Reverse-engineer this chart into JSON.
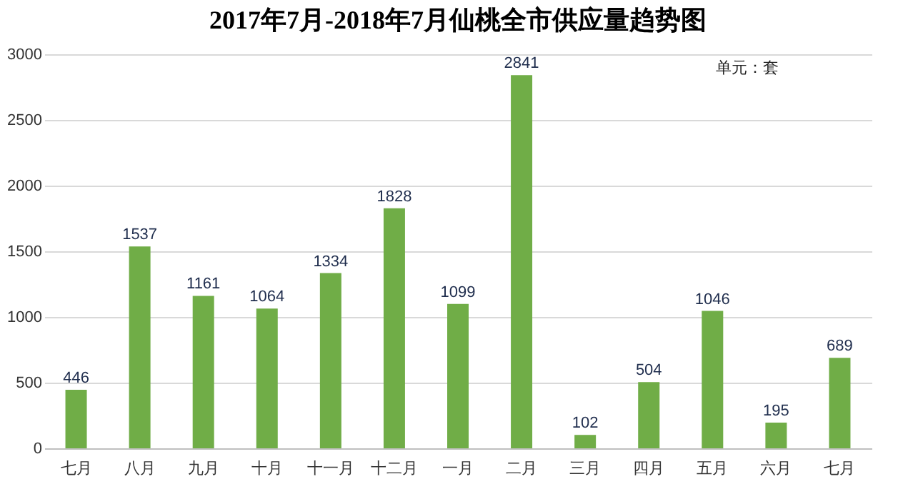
{
  "chart_data": {
    "type": "bar",
    "title": "2017年7月-2018年7月仙桃全市供应量趋势图",
    "annotations": [
      "单元：套"
    ],
    "categories": [
      "七月",
      "八月",
      "九月",
      "十月",
      "十一月",
      "十二月",
      "一月",
      "二月",
      "三月",
      "四月",
      "五月",
      "六月",
      "七月"
    ],
    "values": [
      446,
      1537,
      1161,
      1064,
      1334,
      1828,
      1099,
      2841,
      102,
      504,
      1046,
      195,
      689
    ],
    "color": "#70ad47",
    "ylim": [
      0,
      3000
    ],
    "yticks": [
      0,
      500,
      1000,
      1500,
      2000,
      2500,
      3000
    ],
    "grid": "y",
    "data_labels": true
  }
}
